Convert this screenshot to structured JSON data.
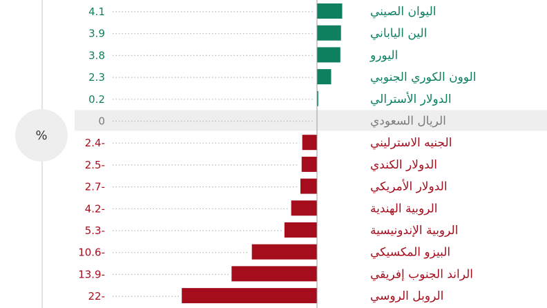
{
  "unit_label": "%",
  "colors": {
    "positive": "#0e8060",
    "negative": "#a50d1c",
    "neutral": "#7a7a7a",
    "highlight_row": "#eeeeee",
    "axis": "#999999"
  },
  "chart_data": {
    "type": "bar",
    "orientation": "horizontal",
    "categories": [
      "اليوان الصيني",
      "الين الياباني",
      "اليورو",
      "الوون الكوري الجنوبي",
      "الدولار الأسترالي",
      "الريال السعودي",
      "الجنيه الاسترليني",
      "الدولار الكندي",
      "الدولار الأمريكي",
      "الروبية الهندية",
      "الروبية الإندونيسية",
      "البيزو المكسيكي",
      "الراند الجنوب إفريقي",
      "الروبل الروسي"
    ],
    "values": [
      4.1,
      3.9,
      3.8,
      2.3,
      0.2,
      0,
      -2.4,
      -2.5,
      -2.7,
      -4.2,
      -5.3,
      -10.6,
      -13.9,
      -22
    ],
    "value_labels": [
      "4.1",
      "3.9",
      "3.8",
      "2.3",
      "0.2",
      "0",
      "2.4-",
      "2.5-",
      "2.7-",
      "4.2-",
      "5.3-",
      "10.6-",
      "13.9-",
      "22-"
    ],
    "highlight_category": "الريال السعودي",
    "grid": false,
    "leader_lines": true
  }
}
